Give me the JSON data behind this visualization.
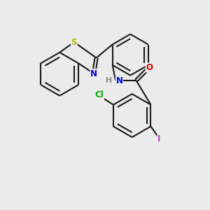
{
  "background_color": "#ebebeb",
  "bond_color": "#1a1a1a",
  "bond_lw": 1.5,
  "atom_colors": {
    "S": "#b8b800",
    "N": "#0000e0",
    "O": "#e00000",
    "Cl": "#00aa00",
    "I": "#cc33cc",
    "H": "#888888"
  },
  "font_size": 8.5,
  "inner_r": 0.78
}
